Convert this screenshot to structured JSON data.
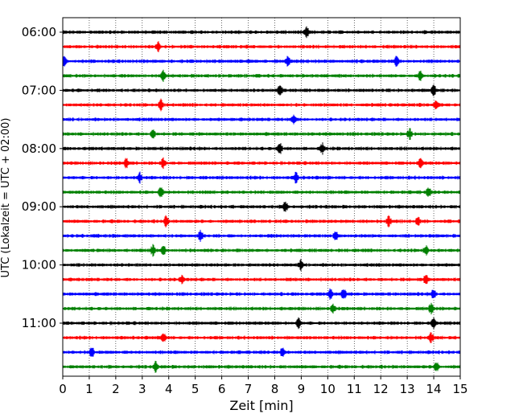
{
  "chart_data": {
    "type": "line",
    "xlabel": "Zeit  [min]",
    "ylabel": "UTC (Lokalzeit = UTC + 02:00)",
    "xlim": [
      0,
      15
    ],
    "x_ticks": [
      0,
      1,
      2,
      3,
      4,
      5,
      6,
      7,
      8,
      9,
      10,
      11,
      12,
      13,
      14,
      15
    ],
    "y_tick_labels": [
      "06:00",
      "07:00",
      "08:00",
      "09:00",
      "10:00",
      "11:00"
    ],
    "trace_interval_min": 15,
    "grid": "vertical-dotted",
    "trace_colors": [
      "#000000",
      "#ff0000",
      "#0000ff",
      "#008000"
    ],
    "traces": [
      {
        "start": "06:00",
        "color": "#000000",
        "events": [
          9.2
        ]
      },
      {
        "start": "06:15",
        "color": "#ff0000",
        "events": [
          3.6
        ]
      },
      {
        "start": "06:30",
        "color": "#0000ff",
        "events": [
          0.05,
          8.5,
          12.6
        ]
      },
      {
        "start": "06:45",
        "color": "#008000",
        "events": [
          3.8,
          13.5
        ]
      },
      {
        "start": "07:00",
        "color": "#000000",
        "events": [
          8.2,
          14.0
        ]
      },
      {
        "start": "07:15",
        "color": "#ff0000",
        "events": [
          3.7,
          14.1
        ]
      },
      {
        "start": "07:30",
        "color": "#0000ff",
        "events": [
          8.7
        ]
      },
      {
        "start": "07:45",
        "color": "#008000",
        "events": [
          3.4,
          13.1
        ]
      },
      {
        "start": "08:00",
        "color": "#000000",
        "events": [
          8.2,
          9.8
        ]
      },
      {
        "start": "08:15",
        "color": "#ff0000",
        "events": [
          2.4,
          3.8,
          13.5
        ]
      },
      {
        "start": "08:30",
        "color": "#0000ff",
        "events": [
          2.9,
          8.8
        ]
      },
      {
        "start": "08:45",
        "color": "#008000",
        "events": [
          3.7,
          13.8
        ]
      },
      {
        "start": "09:00",
        "color": "#000000",
        "events": [
          8.4
        ]
      },
      {
        "start": "09:15",
        "color": "#ff0000",
        "events": [
          3.9,
          12.3,
          13.4
        ]
      },
      {
        "start": "09:30",
        "color": "#0000ff",
        "events": [
          5.2,
          10.3
        ]
      },
      {
        "start": "09:45",
        "color": "#008000",
        "events": [
          3.4,
          3.8,
          13.7
        ]
      },
      {
        "start": "10:00",
        "color": "#000000",
        "events": [
          9.0
        ]
      },
      {
        "start": "10:15",
        "color": "#ff0000",
        "events": [
          4.5,
          13.7
        ]
      },
      {
        "start": "10:30",
        "color": "#0000ff",
        "events": [
          10.1,
          10.6,
          14.0
        ]
      },
      {
        "start": "10:45",
        "color": "#008000",
        "events": [
          10.2,
          13.9
        ]
      },
      {
        "start": "11:00",
        "color": "#000000",
        "events": [
          8.9,
          14.0
        ]
      },
      {
        "start": "11:15",
        "color": "#ff0000",
        "events": [
          3.8,
          13.9
        ]
      },
      {
        "start": "11:30",
        "color": "#0000ff",
        "events": [
          1.1,
          8.3
        ]
      },
      {
        "start": "11:45",
        "color": "#008000",
        "events": [
          3.5,
          14.1
        ]
      }
    ]
  }
}
